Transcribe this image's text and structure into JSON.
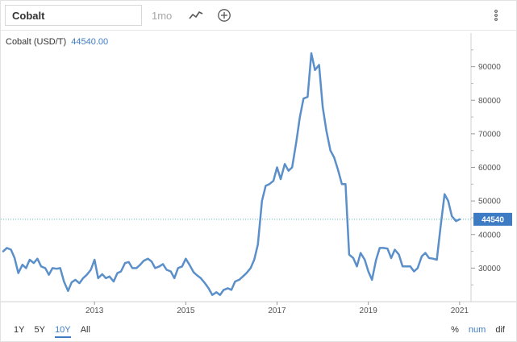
{
  "toolbar": {
    "symbol_value": "Cobalt",
    "interval": "1mo",
    "icons": [
      "trend-line-icon",
      "add-circle-icon",
      "more-vertical-icon"
    ]
  },
  "chart_title": {
    "label": "Cobalt (USD/T)",
    "value": "44540.00"
  },
  "range_buttons": [
    "1Y",
    "5Y",
    "10Y",
    "All"
  ],
  "active_range": "10Y",
  "mode_buttons": [
    "%",
    "num",
    "dif"
  ],
  "active_mode": "num",
  "colors": {
    "accent": "#3d7bc4",
    "line": "#5b8fc9",
    "reference": "#4db6ac"
  },
  "chart_data": {
    "type": "line",
    "title": "Cobalt (USD/T)",
    "xlabel": "",
    "ylabel": "",
    "xlim": [
      2011.0,
      2021.25
    ],
    "ylim": [
      20000,
      100000
    ],
    "y_ticks": [
      30000,
      40000,
      50000,
      60000,
      70000,
      80000,
      90000
    ],
    "y_tick_labels": [
      "30000",
      "40000",
      "50000",
      "60000",
      "70000",
      "80000",
      "90000"
    ],
    "x_ticks": [
      2013,
      2015,
      2017,
      2019,
      2021
    ],
    "x_tick_labels": [
      "2013",
      "2015",
      "2017",
      "2019",
      "2021"
    ],
    "grid": "horizontal",
    "legend": "none",
    "current_value": 44540,
    "current_value_label": "44540",
    "series": [
      {
        "values": [
          [
            2011.0,
            35000
          ],
          [
            2011.08,
            36000
          ],
          [
            2011.17,
            35500
          ],
          [
            2011.25,
            33000
          ],
          [
            2011.33,
            28500
          ],
          [
            2011.42,
            31000
          ],
          [
            2011.5,
            30000
          ],
          [
            2011.58,
            32500
          ],
          [
            2011.67,
            31500
          ],
          [
            2011.75,
            32800
          ],
          [
            2011.83,
            30500
          ],
          [
            2011.92,
            30000
          ],
          [
            2012.0,
            28000
          ],
          [
            2012.08,
            30000
          ],
          [
            2012.17,
            29800
          ],
          [
            2012.25,
            30000
          ],
          [
            2012.33,
            26000
          ],
          [
            2012.42,
            23200
          ],
          [
            2012.5,
            25800
          ],
          [
            2012.58,
            26500
          ],
          [
            2012.67,
            25500
          ],
          [
            2012.75,
            27000
          ],
          [
            2012.83,
            28000
          ],
          [
            2012.92,
            29500
          ],
          [
            2013.0,
            32500
          ],
          [
            2013.08,
            27000
          ],
          [
            2013.17,
            28200
          ],
          [
            2013.25,
            27000
          ],
          [
            2013.33,
            27500
          ],
          [
            2013.42,
            26000
          ],
          [
            2013.5,
            28500
          ],
          [
            2013.58,
            29000
          ],
          [
            2013.67,
            31500
          ],
          [
            2013.75,
            31800
          ],
          [
            2013.83,
            30000
          ],
          [
            2013.92,
            30000
          ],
          [
            2014.0,
            31000
          ],
          [
            2014.08,
            32200
          ],
          [
            2014.17,
            32800
          ],
          [
            2014.25,
            32000
          ],
          [
            2014.33,
            30000
          ],
          [
            2014.42,
            30500
          ],
          [
            2014.5,
            31200
          ],
          [
            2014.58,
            29500
          ],
          [
            2014.67,
            29000
          ],
          [
            2014.75,
            27000
          ],
          [
            2014.83,
            30000
          ],
          [
            2014.92,
            30500
          ],
          [
            2015.0,
            32800
          ],
          [
            2015.08,
            31000
          ],
          [
            2015.17,
            28800
          ],
          [
            2015.25,
            27800
          ],
          [
            2015.33,
            27000
          ],
          [
            2015.42,
            25500
          ],
          [
            2015.5,
            24000
          ],
          [
            2015.58,
            22000
          ],
          [
            2015.67,
            22800
          ],
          [
            2015.75,
            22000
          ],
          [
            2015.83,
            23500
          ],
          [
            2015.92,
            24000
          ],
          [
            2016.0,
            23500
          ],
          [
            2016.08,
            26000
          ],
          [
            2016.17,
            26500
          ],
          [
            2016.25,
            27500
          ],
          [
            2016.33,
            28500
          ],
          [
            2016.42,
            30000
          ],
          [
            2016.5,
            32500
          ],
          [
            2016.58,
            37000
          ],
          [
            2016.67,
            50000
          ],
          [
            2016.75,
            54500
          ],
          [
            2016.83,
            55000
          ],
          [
            2016.92,
            56000
          ],
          [
            2017.0,
            60000
          ],
          [
            2017.08,
            56500
          ],
          [
            2017.17,
            61000
          ],
          [
            2017.25,
            59000
          ],
          [
            2017.33,
            60000
          ],
          [
            2017.42,
            67500
          ],
          [
            2017.5,
            75000
          ],
          [
            2017.58,
            80500
          ],
          [
            2017.67,
            81000
          ],
          [
            2017.75,
            94000
          ],
          [
            2017.83,
            89000
          ],
          [
            2017.92,
            90500
          ],
          [
            2018.0,
            78000
          ],
          [
            2018.08,
            71000
          ],
          [
            2018.17,
            65000
          ],
          [
            2018.25,
            63000
          ],
          [
            2018.33,
            59500
          ],
          [
            2018.42,
            55000
          ],
          [
            2018.5,
            55000
          ],
          [
            2018.58,
            34000
          ],
          [
            2018.67,
            33000
          ],
          [
            2018.75,
            30500
          ],
          [
            2018.83,
            34500
          ],
          [
            2018.92,
            32500
          ],
          [
            2019.0,
            29000
          ],
          [
            2019.08,
            26500
          ],
          [
            2019.17,
            32500
          ],
          [
            2019.25,
            36000
          ],
          [
            2019.33,
            36000
          ],
          [
            2019.42,
            35800
          ],
          [
            2019.5,
            33000
          ],
          [
            2019.58,
            35500
          ],
          [
            2019.67,
            34000
          ],
          [
            2019.75,
            30500
          ],
          [
            2019.83,
            30500
          ],
          [
            2019.92,
            30500
          ],
          [
            2020.0,
            29000
          ],
          [
            2020.08,
            30000
          ],
          [
            2020.17,
            33500
          ],
          [
            2020.25,
            34500
          ],
          [
            2020.33,
            33000
          ],
          [
            2020.42,
            32800
          ],
          [
            2020.5,
            32500
          ],
          [
            2020.58,
            42000
          ],
          [
            2020.67,
            52000
          ],
          [
            2020.75,
            50000
          ],
          [
            2020.83,
            45500
          ],
          [
            2020.92,
            44000
          ],
          [
            2021.0,
            44540
          ]
        ]
      }
    ]
  }
}
